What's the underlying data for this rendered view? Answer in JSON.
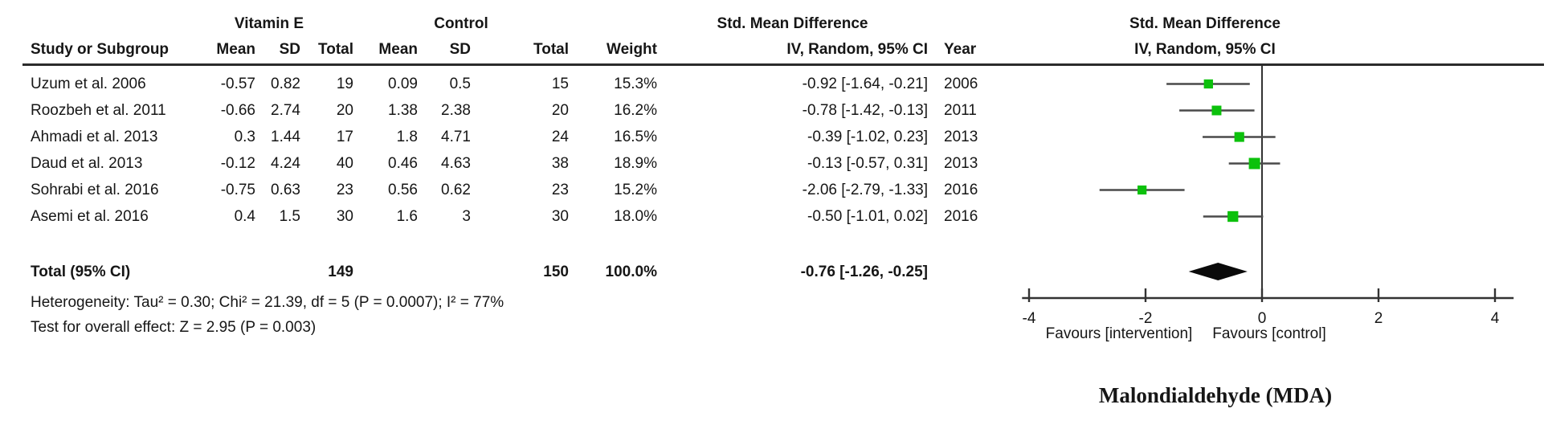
{
  "title": "Malondialdehyde (MDA)",
  "table": {
    "group1_header": "Vitamin E",
    "group2_header": "Control",
    "headers": {
      "study": "Study or Subgroup",
      "mean": "Mean",
      "sd": "SD",
      "total": "Total",
      "weight": "Weight",
      "smd": "Std. Mean Difference",
      "iv": "IV, Random, 95% CI",
      "year": "Year"
    },
    "heterogeneity": "Heterogeneity: Tau² = 0.30; Chi² = 21.39, df = 5 (P = 0.0007); I² = 77%",
    "overall_effect": "Test for overall effect: Z = 2.95 (P = 0.003)"
  },
  "chart_data": {
    "type": "forest",
    "title": "Malondialdehyde (MDA)",
    "effect_measure": "Std. Mean Difference, IV, Random, 95% CI",
    "studies": [
      {
        "name": "Uzum et al. 2006",
        "mean_e": "-0.57",
        "sd_e": "0.82",
        "n_e": "19",
        "mean_c": "0.09",
        "sd_c": "0.5",
        "n_c": "15",
        "weight": "15.3%",
        "weight_pct": 15.3,
        "est": -0.92,
        "lo": -1.64,
        "hi": -0.21,
        "ci_label": "-0.92 [-1.64, -0.21]",
        "year": "2006"
      },
      {
        "name": "Roozbeh et al. 2011",
        "mean_e": "-0.66",
        "sd_e": "2.74",
        "n_e": "20",
        "mean_c": "1.38",
        "sd_c": "2.38",
        "n_c": "20",
        "weight": "16.2%",
        "weight_pct": 16.2,
        "est": -0.78,
        "lo": -1.42,
        "hi": -0.13,
        "ci_label": "-0.78 [-1.42, -0.13]",
        "year": "2011"
      },
      {
        "name": "Ahmadi et al. 2013",
        "mean_e": "0.3",
        "sd_e": "1.44",
        "n_e": "17",
        "mean_c": "1.8",
        "sd_c": "4.71",
        "n_c": "24",
        "weight": "16.5%",
        "weight_pct": 16.5,
        "est": -0.39,
        "lo": -1.02,
        "hi": 0.23,
        "ci_label": "-0.39 [-1.02, 0.23]",
        "year": "2013"
      },
      {
        "name": "Daud et al. 2013",
        "mean_e": "-0.12",
        "sd_e": "4.24",
        "n_e": "40",
        "mean_c": "0.46",
        "sd_c": "4.63",
        "n_c": "38",
        "weight": "18.9%",
        "weight_pct": 18.9,
        "est": -0.13,
        "lo": -0.57,
        "hi": 0.31,
        "ci_label": "-0.13 [-0.57, 0.31]",
        "year": "2013"
      },
      {
        "name": "Sohrabi et al. 2016",
        "mean_e": "-0.75",
        "sd_e": "0.63",
        "n_e": "23",
        "mean_c": "0.56",
        "sd_c": "0.62",
        "n_c": "23",
        "weight": "15.2%",
        "weight_pct": 15.2,
        "est": -2.06,
        "lo": -2.79,
        "hi": -1.33,
        "ci_label": "-2.06 [-2.79, -1.33]",
        "year": "2016"
      },
      {
        "name": "Asemi et al. 2016",
        "mean_e": "0.4",
        "sd_e": "1.5",
        "n_e": "30",
        "mean_c": "1.6",
        "sd_c": "3",
        "n_c": "30",
        "weight": "18.0%",
        "weight_pct": 18.0,
        "est": -0.5,
        "lo": -1.01,
        "hi": 0.02,
        "ci_label": "-0.50 [-1.01, 0.02]",
        "year": "2016"
      }
    ],
    "total": {
      "label": "Total (95% CI)",
      "n_e": "149",
      "n_c": "150",
      "weight": "100.0%",
      "est": -0.76,
      "lo": -1.26,
      "hi": -0.25,
      "ci_label": "-0.76 [-1.26, -0.25]"
    },
    "axis": {
      "ticks": [
        -4,
        -2,
        0,
        2,
        4
      ],
      "xlim": [
        -4.12,
        4.32
      ],
      "favours_left": "Favours [intervention]",
      "favours_right": "Favours [control]"
    },
    "colors": {
      "marker": "#0cc10c",
      "ci_line": "#4a4a4a",
      "diamond": "#0a0a0a",
      "axis": "#333333"
    }
  }
}
